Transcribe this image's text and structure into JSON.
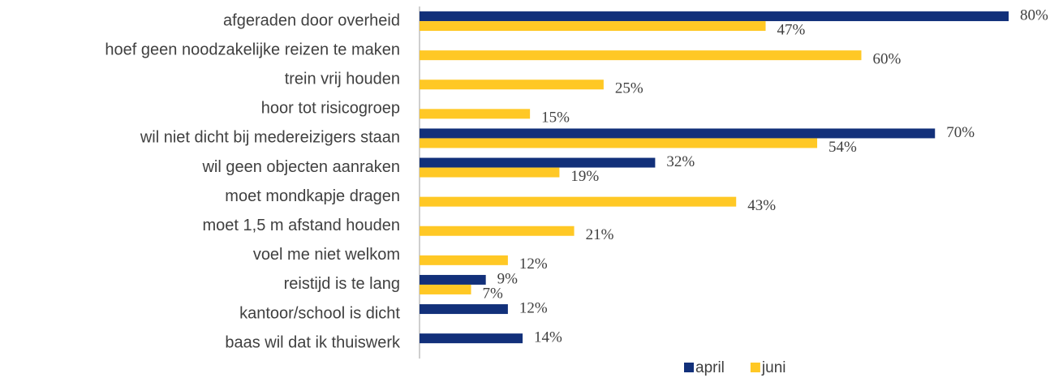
{
  "chart_data": {
    "type": "hbar",
    "categories": [
      "afgeraden door overheid",
      "hoef geen noodzakelijke reizen te maken",
      "trein vrij houden",
      "hoor tot risicogroep",
      "wil niet dicht bij medereizigers staan",
      "wil geen objecten aanraken",
      "moet mondkapje dragen",
      "moet 1,5 m afstand houden",
      "voel me niet welkom",
      "reistijd is te lang",
      "kantoor/school is dicht",
      "baas wil dat ik thuiswerk"
    ],
    "series": [
      {
        "name": "april",
        "color": "#12307a",
        "values": [
          80,
          null,
          null,
          null,
          70,
          32,
          null,
          null,
          null,
          9,
          12,
          14
        ],
        "value_labels": [
          "80%",
          null,
          null,
          null,
          "70%",
          "32%",
          null,
          null,
          null,
          "9%",
          "12%",
          "14%"
        ]
      },
      {
        "name": "juni",
        "color": "#ffc825",
        "values": [
          47,
          60,
          25,
          15,
          54,
          19,
          43,
          21,
          12,
          7,
          null,
          null
        ],
        "value_labels": [
          "47%",
          "60%",
          "25%",
          "15%",
          "54%",
          "19%",
          "43%",
          "21%",
          "12%",
          "7%",
          null,
          null
        ]
      }
    ],
    "xlim": [
      0,
      80
    ],
    "legend": "bottom"
  }
}
